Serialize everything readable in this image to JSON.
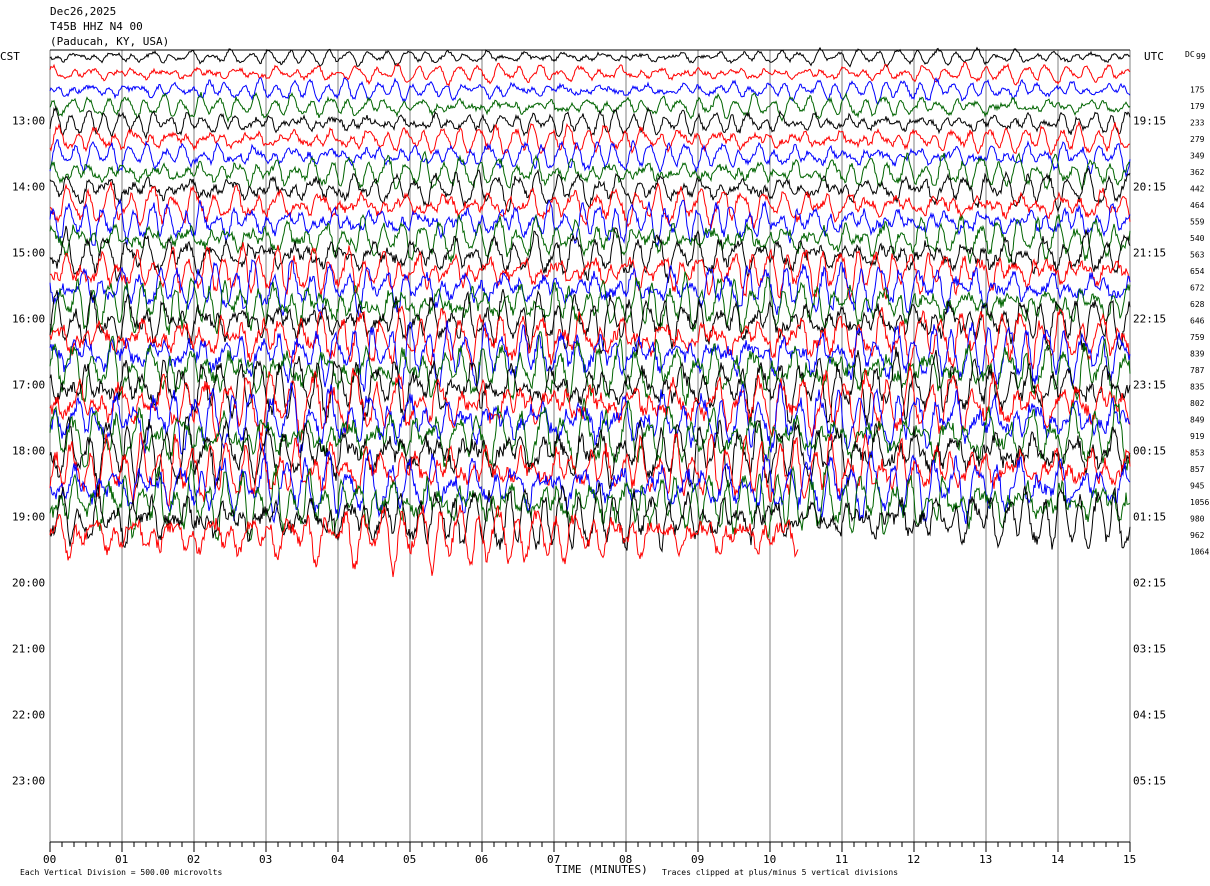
{
  "header": {
    "date": "Dec26,2025",
    "station": "T45B HHZ N4 00",
    "location": "(Paducah, KY, USA)"
  },
  "left_zone": "CST",
  "right_zone": "UTC",
  "dc_label": "DC",
  "footer": {
    "scale": "Each Vertical Division =  500.00 microvolts",
    "xlabel": "TIME (MINUTES)",
    "clip_note": "Traces clipped at plus/minus 5 vertical divisions"
  },
  "chart_data": {
    "type": "line",
    "title": "",
    "xlabel": "TIME (MINUTES)",
    "x_ticks": [
      "00",
      "01",
      "02",
      "03",
      "04",
      "05",
      "06",
      "07",
      "08",
      "09",
      "10",
      "11",
      "12",
      "13",
      "14",
      "15"
    ],
    "xlim": [
      0,
      15
    ],
    "left_hour_labels": [
      "13:00",
      "14:00",
      "15:00",
      "16:00",
      "17:00",
      "18:00",
      "19:00",
      "20:00",
      "21:00",
      "22:00",
      "23:00"
    ],
    "right_hour_labels": [
      "19:15",
      "20:15",
      "21:15",
      "22:15",
      "23:15",
      "00:15",
      "01:15",
      "02:15",
      "03:15",
      "04:15",
      "05:15"
    ],
    "dc_offsets": [
      "99",
      "175",
      "179",
      "233",
      "279",
      "349",
      "362",
      "442",
      "464",
      "559",
      "540",
      "563",
      "654",
      "672",
      "628",
      "646",
      "759",
      "839",
      "787",
      "835",
      "802",
      "849",
      "919",
      "853",
      "857",
      "945",
      "1056",
      "980",
      "962",
      "1064"
    ],
    "trace_colors": [
      "#000000",
      "#ff0000",
      "#0000ff",
      "#006400"
    ],
    "trace_count": 30,
    "last_trace_end_minute": 10.4,
    "grid": true
  }
}
